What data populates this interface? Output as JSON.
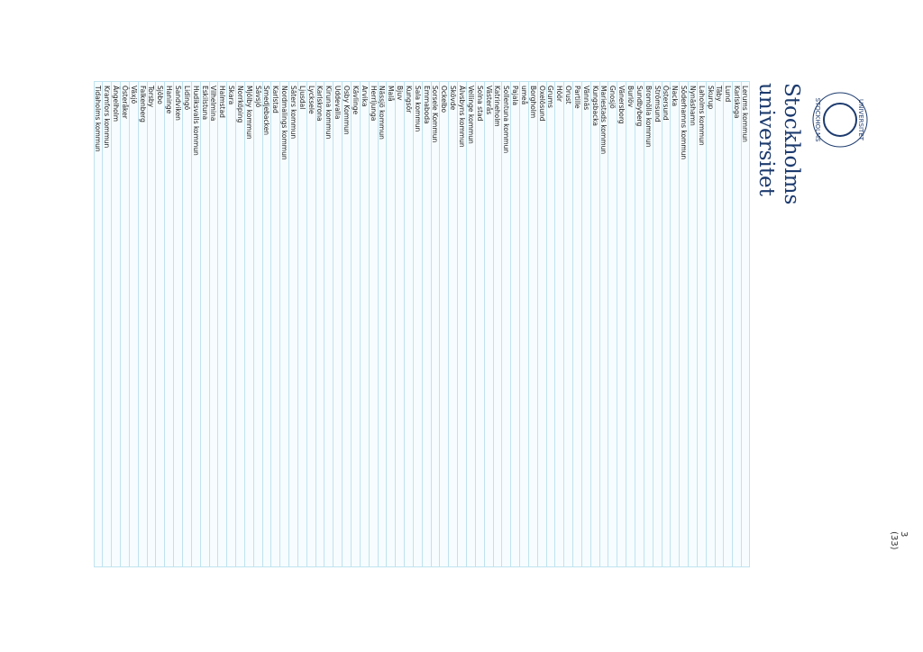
{
  "header": {
    "seal_top": "UNIVERSITET",
    "seal_bottom": "STOCKHOLMS",
    "logo_lines": [
      "Stockholms",
      "universitet"
    ]
  },
  "list": {
    "items": [
      "Lerums kommun",
      "Karlskoga",
      "Lund",
      "Täby",
      "Skurup",
      "Laholms kommun",
      "Nynäshamn",
      "Söderhamns kommun",
      "Nacka",
      "Östersund",
      "Strömsund",
      "Bromölla kommun",
      "Sundbyberg",
      "Burlöv",
      "Vänersborg",
      "Gnosjö",
      "Mariestads kommun",
      "Kungsbacka",
      "Vännäs",
      "Partille",
      "Orust",
      "Höör",
      "Grums",
      "Oxelösund",
      "Borgholm",
      "umeå",
      "Pajala",
      "Sollentuna kommun",
      "Katrineholm",
      "Västerås",
      "Solna stad",
      "Vellinge kommun",
      "Älvsbyns kommun",
      "Skövde",
      "Ockelbo",
      "Sorsele Kommun",
      "Emmaboda",
      "Sala kommun",
      "Kungsör",
      "Bjuv",
      "Malå",
      "Nässjö kommun",
      "Herrljunga",
      "Arvika",
      "Kävlinge",
      "Osby Kommun",
      "Uddevalla",
      "Kiruna kommun",
      "Karlskrona",
      "Lycksele",
      "Ljusdal",
      "Säters kommun",
      "Nordmalings kommun",
      "Karlstad",
      "Smedjebacken",
      "Sävsjö",
      "Mjölby kommun",
      "Norrköping",
      "Skara",
      "Halmstad",
      "Vilhelmina",
      "Eskilstuna",
      "Hudiksvalls kommun",
      "Lidingö",
      "Sandviken",
      "Haninge",
      "Sjöbo",
      "Torsby",
      "Falkenberg",
      "Växjö",
      "Österåker",
      "Ängelholm",
      "Kramfors kommun",
      "Tidaholms kommun"
    ]
  },
  "footer": {
    "page_number": "3 (33)"
  }
}
